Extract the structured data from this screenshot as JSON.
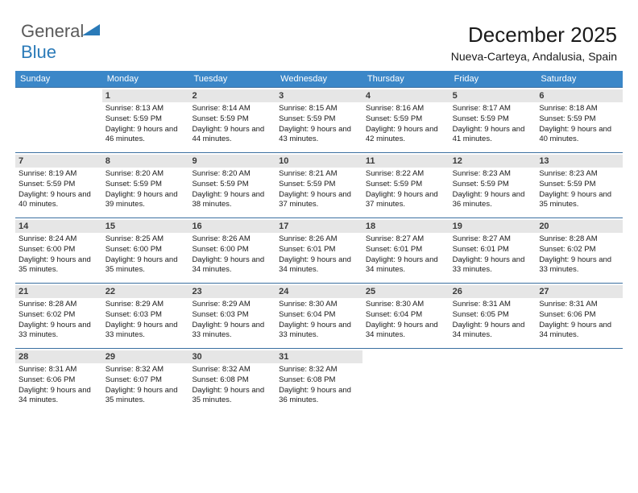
{
  "colors": {
    "header_bg": "#3b87c8",
    "header_text": "#ffffff",
    "daynum_bg": "#e6e6e6",
    "daynum_text": "#3a3a3a",
    "row_border": "#3b6fa0",
    "logo_gray": "#5a5a5a",
    "logo_blue": "#2a7ab8",
    "body_text": "#1a1a1a",
    "background": "#ffffff"
  },
  "logo": {
    "word1": "General",
    "word2": "Blue"
  },
  "title": "December 2025",
  "subtitle": "Nueva-Carteya, Andalusia, Spain",
  "weekdays": [
    "Sunday",
    "Monday",
    "Tuesday",
    "Wednesday",
    "Thursday",
    "Friday",
    "Saturday"
  ],
  "weeks": [
    [
      {
        "n": "",
        "sr": "",
        "ss": "",
        "dl": ""
      },
      {
        "n": "1",
        "sr": "8:13 AM",
        "ss": "5:59 PM",
        "dl": "9 hours and 46 minutes."
      },
      {
        "n": "2",
        "sr": "8:14 AM",
        "ss": "5:59 PM",
        "dl": "9 hours and 44 minutes."
      },
      {
        "n": "3",
        "sr": "8:15 AM",
        "ss": "5:59 PM",
        "dl": "9 hours and 43 minutes."
      },
      {
        "n": "4",
        "sr": "8:16 AM",
        "ss": "5:59 PM",
        "dl": "9 hours and 42 minutes."
      },
      {
        "n": "5",
        "sr": "8:17 AM",
        "ss": "5:59 PM",
        "dl": "9 hours and 41 minutes."
      },
      {
        "n": "6",
        "sr": "8:18 AM",
        "ss": "5:59 PM",
        "dl": "9 hours and 40 minutes."
      }
    ],
    [
      {
        "n": "7",
        "sr": "8:19 AM",
        "ss": "5:59 PM",
        "dl": "9 hours and 40 minutes."
      },
      {
        "n": "8",
        "sr": "8:20 AM",
        "ss": "5:59 PM",
        "dl": "9 hours and 39 minutes."
      },
      {
        "n": "9",
        "sr": "8:20 AM",
        "ss": "5:59 PM",
        "dl": "9 hours and 38 minutes."
      },
      {
        "n": "10",
        "sr": "8:21 AM",
        "ss": "5:59 PM",
        "dl": "9 hours and 37 minutes."
      },
      {
        "n": "11",
        "sr": "8:22 AM",
        "ss": "5:59 PM",
        "dl": "9 hours and 37 minutes."
      },
      {
        "n": "12",
        "sr": "8:23 AM",
        "ss": "5:59 PM",
        "dl": "9 hours and 36 minutes."
      },
      {
        "n": "13",
        "sr": "8:23 AM",
        "ss": "5:59 PM",
        "dl": "9 hours and 35 minutes."
      }
    ],
    [
      {
        "n": "14",
        "sr": "8:24 AM",
        "ss": "6:00 PM",
        "dl": "9 hours and 35 minutes."
      },
      {
        "n": "15",
        "sr": "8:25 AM",
        "ss": "6:00 PM",
        "dl": "9 hours and 35 minutes."
      },
      {
        "n": "16",
        "sr": "8:26 AM",
        "ss": "6:00 PM",
        "dl": "9 hours and 34 minutes."
      },
      {
        "n": "17",
        "sr": "8:26 AM",
        "ss": "6:01 PM",
        "dl": "9 hours and 34 minutes."
      },
      {
        "n": "18",
        "sr": "8:27 AM",
        "ss": "6:01 PM",
        "dl": "9 hours and 34 minutes."
      },
      {
        "n": "19",
        "sr": "8:27 AM",
        "ss": "6:01 PM",
        "dl": "9 hours and 33 minutes."
      },
      {
        "n": "20",
        "sr": "8:28 AM",
        "ss": "6:02 PM",
        "dl": "9 hours and 33 minutes."
      }
    ],
    [
      {
        "n": "21",
        "sr": "8:28 AM",
        "ss": "6:02 PM",
        "dl": "9 hours and 33 minutes."
      },
      {
        "n": "22",
        "sr": "8:29 AM",
        "ss": "6:03 PM",
        "dl": "9 hours and 33 minutes."
      },
      {
        "n": "23",
        "sr": "8:29 AM",
        "ss": "6:03 PM",
        "dl": "9 hours and 33 minutes."
      },
      {
        "n": "24",
        "sr": "8:30 AM",
        "ss": "6:04 PM",
        "dl": "9 hours and 33 minutes."
      },
      {
        "n": "25",
        "sr": "8:30 AM",
        "ss": "6:04 PM",
        "dl": "9 hours and 34 minutes."
      },
      {
        "n": "26",
        "sr": "8:31 AM",
        "ss": "6:05 PM",
        "dl": "9 hours and 34 minutes."
      },
      {
        "n": "27",
        "sr": "8:31 AM",
        "ss": "6:06 PM",
        "dl": "9 hours and 34 minutes."
      }
    ],
    [
      {
        "n": "28",
        "sr": "8:31 AM",
        "ss": "6:06 PM",
        "dl": "9 hours and 34 minutes."
      },
      {
        "n": "29",
        "sr": "8:32 AM",
        "ss": "6:07 PM",
        "dl": "9 hours and 35 minutes."
      },
      {
        "n": "30",
        "sr": "8:32 AM",
        "ss": "6:08 PM",
        "dl": "9 hours and 35 minutes."
      },
      {
        "n": "31",
        "sr": "8:32 AM",
        "ss": "6:08 PM",
        "dl": "9 hours and 36 minutes."
      },
      {
        "n": "",
        "sr": "",
        "ss": "",
        "dl": ""
      },
      {
        "n": "",
        "sr": "",
        "ss": "",
        "dl": ""
      },
      {
        "n": "",
        "sr": "",
        "ss": "",
        "dl": ""
      }
    ]
  ],
  "labels": {
    "sunrise": "Sunrise: ",
    "sunset": "Sunset: ",
    "daylight": "Daylight: "
  }
}
